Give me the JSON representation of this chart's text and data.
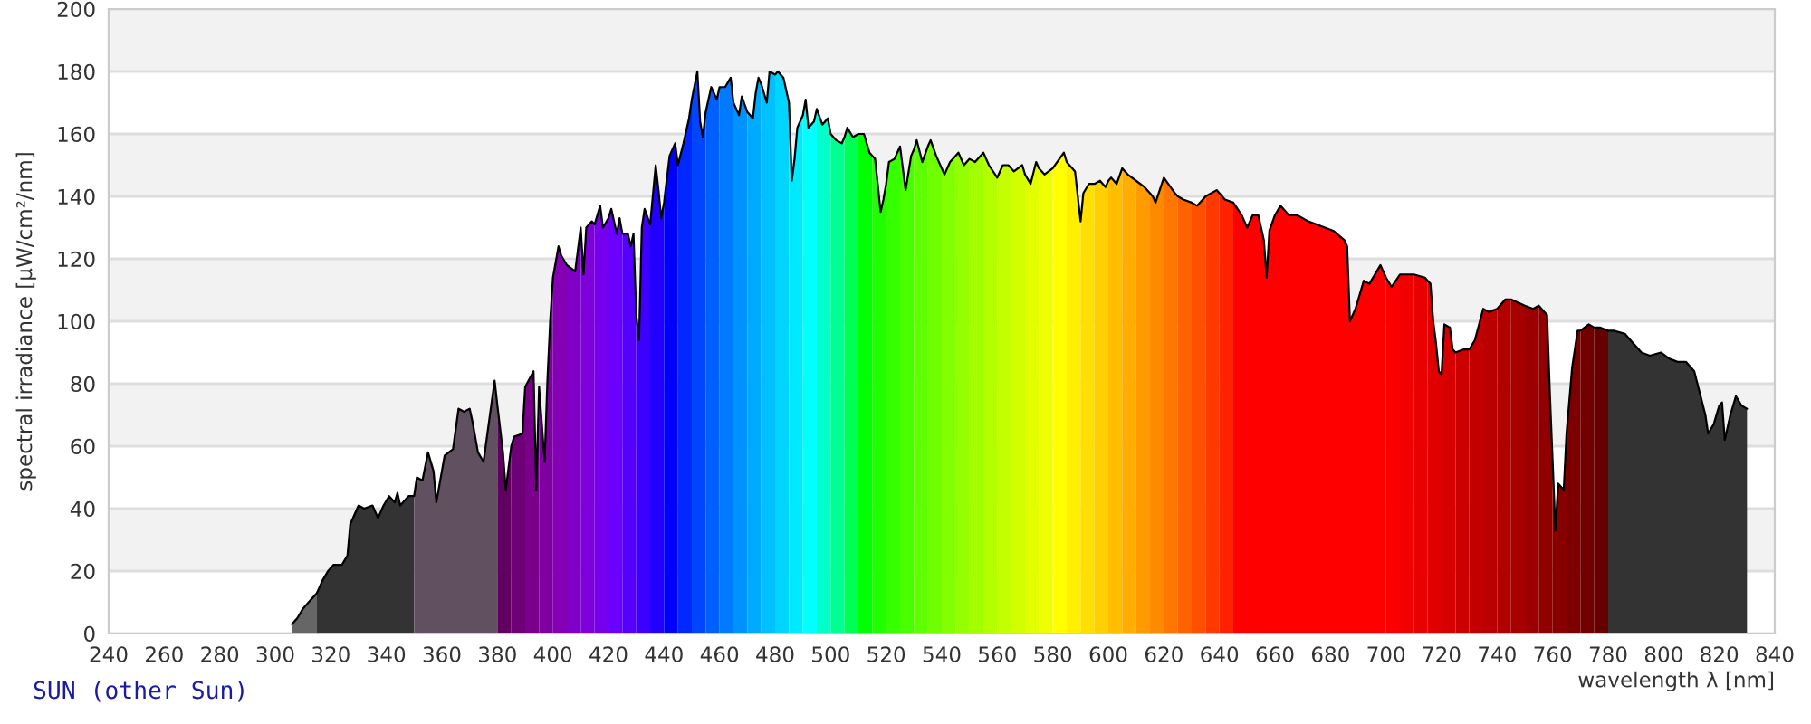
{
  "chart_data": {
    "type": "area",
    "xlabel": "wavelength λ [nm]",
    "ylabel": "spectral irradiance [µW/cm²/nm]",
    "annotations": [
      "SUN (other Sun)"
    ],
    "xlim": [
      240,
      840
    ],
    "xticks": [
      240,
      260,
      280,
      300,
      320,
      340,
      360,
      380,
      400,
      420,
      440,
      460,
      480,
      500,
      520,
      540,
      560,
      580,
      600,
      620,
      640,
      660,
      680,
      700,
      720,
      740,
      760,
      780,
      800,
      820,
      840
    ],
    "ylim": [
      0,
      200
    ],
    "yticks": [
      0,
      20,
      40,
      60,
      80,
      100,
      120,
      140,
      160,
      180,
      200
    ],
    "grid": "y",
    "series": [
      {
        "color": "#666666",
        "x": [
          306,
          308,
          310,
          312,
          315
        ],
        "values": [
          3,
          5,
          8,
          10,
          13
        ]
      },
      {
        "color": "#333333",
        "x": [
          315,
          317,
          319,
          321,
          324,
          326,
          327,
          330,
          332,
          335,
          337,
          339,
          341,
          343,
          344,
          345,
          348,
          350
        ],
        "values": [
          13,
          17,
          20,
          22,
          22,
          25,
          35,
          41,
          40,
          41,
          37,
          41,
          44,
          42,
          45,
          41,
          44,
          44
        ]
      },
      {
        "color": "#605060",
        "x": [
          350,
          351,
          353,
          355,
          357,
          358,
          361,
          364,
          366,
          368,
          370,
          371,
          373,
          375,
          377,
          379,
          380
        ],
        "values": [
          44,
          50,
          49,
          58,
          52,
          42,
          57,
          59,
          72,
          71,
          72,
          68,
          58,
          55,
          68,
          81,
          73
        ]
      },
      {
        "color": "#610061",
        "x": [
          380,
          382,
          383,
          385
        ],
        "values": [
          73,
          58,
          46,
          60
        ]
      },
      {
        "color": "#6e0078",
        "x": [
          385,
          386,
          389,
          390
        ],
        "values": [
          60,
          63,
          64,
          79
        ]
      },
      {
        "color": "#7a008c",
        "x": [
          390,
          393,
          394,
          395
        ],
        "values": [
          79,
          84,
          46,
          79
        ]
      },
      {
        "color": "#7f00a0",
        "x": [
          395,
          397,
          398,
          399,
          400
        ],
        "values": [
          79,
          55,
          81,
          100,
          114
        ]
      },
      {
        "color": "#8300b5",
        "x": [
          400,
          402,
          403,
          405
        ],
        "values": [
          114,
          124,
          121,
          118
        ]
      },
      {
        "color": "#8100c8",
        "x": [
          405,
          408,
          410
        ],
        "values": [
          118,
          116,
          130
        ]
      },
      {
        "color": "#7e00db",
        "x": [
          410,
          411,
          412,
          414,
          415
        ],
        "values": [
          130,
          115,
          130,
          132,
          131
        ]
      },
      {
        "color": "#7600ed",
        "x": [
          415,
          417,
          418,
          420
        ],
        "values": [
          131,
          137,
          130,
          133
        ]
      },
      {
        "color": "#6a00ff",
        "x": [
          420,
          421,
          423,
          424,
          425
        ],
        "values": [
          133,
          136,
          128,
          133,
          128
        ]
      },
      {
        "color": "#5500ff",
        "x": [
          425,
          427,
          428,
          429,
          430
        ],
        "values": [
          128,
          128,
          124,
          128,
          102
        ]
      },
      {
        "color": "#3d00ff",
        "x": [
          430,
          431,
          432,
          433,
          435
        ],
        "values": [
          102,
          94,
          130,
          136,
          131
        ]
      },
      {
        "color": "#2200ff",
        "x": [
          435,
          437,
          438,
          439,
          440
        ],
        "values": [
          131,
          150,
          142,
          133,
          138
        ]
      },
      {
        "color": "#0000ff",
        "x": [
          440,
          442,
          444,
          445
        ],
        "values": [
          138,
          153,
          157,
          150
        ]
      },
      {
        "color": "#0028ff",
        "x": [
          445,
          447,
          449,
          450
        ],
        "values": [
          150,
          157,
          165,
          171
        ]
      },
      {
        "color": "#0046ff",
        "x": [
          450,
          452,
          453,
          454,
          455
        ],
        "values": [
          171,
          180,
          164,
          159,
          167
        ]
      },
      {
        "color": "#0060ff",
        "x": [
          455,
          457,
          459,
          460
        ],
        "values": [
          167,
          175,
          171,
          175
        ]
      },
      {
        "color": "#007aff",
        "x": [
          460,
          462,
          464,
          465
        ],
        "values": [
          175,
          175,
          178,
          170
        ]
      },
      {
        "color": "#0092ff",
        "x": [
          465,
          467,
          468,
          470
        ],
        "values": [
          170,
          166,
          172,
          167
        ]
      },
      {
        "color": "#00aaff",
        "x": [
          470,
          472,
          473,
          474,
          475
        ],
        "values": [
          167,
          165,
          173,
          178,
          176
        ]
      },
      {
        "color": "#00c0ff",
        "x": [
          475,
          477,
          478,
          480
        ],
        "values": [
          176,
          170,
          180,
          179
        ]
      },
      {
        "color": "#00d5ff",
        "x": [
          480,
          481,
          483,
          485
        ],
        "values": [
          179,
          180,
          178,
          170
        ]
      },
      {
        "color": "#00eaff",
        "x": [
          485,
          486,
          487,
          488,
          490
        ],
        "values": [
          170,
          145,
          152,
          162,
          166
        ]
      },
      {
        "color": "#00ffff",
        "x": [
          490,
          491,
          492,
          494,
          495
        ],
        "values": [
          166,
          171,
          162,
          164,
          168
        ]
      },
      {
        "color": "#00ffca",
        "x": [
          495,
          497,
          499,
          500
        ],
        "values": [
          168,
          163,
          165,
          160
        ]
      },
      {
        "color": "#00ff92",
        "x": [
          500,
          502,
          504,
          505
        ],
        "values": [
          160,
          158,
          157,
          159
        ]
      },
      {
        "color": "#00ff54",
        "x": [
          505,
          506,
          508,
          510
        ],
        "values": [
          159,
          162,
          159,
          160
        ]
      },
      {
        "color": "#00ff00",
        "x": [
          510,
          512,
          514,
          515
        ],
        "values": [
          160,
          160,
          154,
          153
        ]
      },
      {
        "color": "#20ff00",
        "x": [
          515,
          516,
          518,
          519,
          520
        ],
        "values": [
          153,
          152,
          135,
          139,
          144
        ]
      },
      {
        "color": "#36ff00",
        "x": [
          520,
          521,
          523,
          525
        ],
        "values": [
          144,
          151,
          152,
          156
        ]
      },
      {
        "color": "#4aff00",
        "x": [
          525,
          527,
          529,
          530
        ],
        "values": [
          156,
          142,
          153,
          155
        ]
      },
      {
        "color": "#5eff00",
        "x": [
          530,
          531,
          533,
          535
        ],
        "values": [
          155,
          158,
          151,
          156
        ]
      },
      {
        "color": "#70ff00",
        "x": [
          535,
          536,
          538,
          540
        ],
        "values": [
          156,
          158,
          153,
          149
        ]
      },
      {
        "color": "#82ff00",
        "x": [
          540,
          541,
          543,
          545
        ],
        "values": [
          149,
          147,
          151,
          153
        ]
      },
      {
        "color": "#93ff00",
        "x": [
          545,
          546,
          548,
          550
        ],
        "values": [
          153,
          154,
          150,
          152
        ]
      },
      {
        "color": "#a3ff00",
        "x": [
          550,
          552,
          555
        ],
        "values": [
          152,
          151,
          154
        ]
      },
      {
        "color": "#b3ff00",
        "x": [
          555,
          557,
          560
        ],
        "values": [
          154,
          150,
          146
        ]
      },
      {
        "color": "#c3ff00",
        "x": [
          560,
          562,
          564,
          565
        ],
        "values": [
          146,
          150,
          150,
          149
        ]
      },
      {
        "color": "#d2ff00",
        "x": [
          565,
          566,
          569,
          570
        ],
        "values": [
          149,
          148,
          150,
          147
        ]
      },
      {
        "color": "#e1ff00",
        "x": [
          570,
          572,
          574,
          575
        ],
        "values": [
          147,
          144,
          151,
          149
        ]
      },
      {
        "color": "#f0ff00",
        "x": [
          575,
          577,
          580
        ],
        "values": [
          149,
          147,
          149
        ]
      },
      {
        "color": "#ffff00",
        "x": [
          580,
          584,
          585
        ],
        "values": [
          149,
          154,
          151
        ]
      },
      {
        "color": "#ffef00",
        "x": [
          585,
          586,
          588,
          590
        ],
        "values": [
          151,
          150,
          148,
          132
        ]
      },
      {
        "color": "#ffdf00",
        "x": [
          590,
          591,
          593,
          595
        ],
        "values": [
          132,
          141,
          144,
          144
        ]
      },
      {
        "color": "#ffcf00",
        "x": [
          595,
          597,
          599,
          600
        ],
        "values": [
          144,
          145,
          143,
          145
        ]
      },
      {
        "color": "#ffbe00",
        "x": [
          600,
          601,
          603,
          605
        ],
        "values": [
          145,
          146,
          144,
          149
        ]
      },
      {
        "color": "#ffad00",
        "x": [
          605,
          607,
          610
        ],
        "values": [
          149,
          147,
          145
        ]
      },
      {
        "color": "#ff9b00",
        "x": [
          610,
          613,
          615
        ],
        "values": [
          145,
          143,
          141
        ]
      },
      {
        "color": "#ff8900",
        "x": [
          615,
          616,
          617,
          620
        ],
        "values": [
          141,
          140,
          138,
          146
        ]
      },
      {
        "color": "#ff7700",
        "x": [
          620,
          624,
          625
        ],
        "values": [
          146,
          141,
          140
        ]
      },
      {
        "color": "#ff6300",
        "x": [
          625,
          627,
          630
        ],
        "values": [
          140,
          139,
          138
        ]
      },
      {
        "color": "#ff4f00",
        "x": [
          630,
          632,
          634,
          635
        ],
        "values": [
          138,
          137,
          139,
          140
        ]
      },
      {
        "color": "#ff3900",
        "x": [
          635,
          639,
          640
        ],
        "values": [
          140,
          142,
          141
        ]
      },
      {
        "color": "#ff2100",
        "x": [
          640,
          642,
          645
        ],
        "values": [
          141,
          139,
          138
        ]
      },
      {
        "color": "#ff0000",
        "x": [
          645,
          648,
          650,
          652,
          654,
          656,
          657,
          658,
          660,
          662,
          665,
          668,
          672,
          675,
          678,
          681,
          685,
          686,
          687,
          689,
          692,
          694,
          698,
          700
        ],
        "values": [
          138,
          134,
          130,
          134,
          134,
          126,
          114,
          129,
          134,
          137,
          134,
          134,
          132,
          131,
          130,
          129,
          126,
          124,
          100,
          104,
          113,
          112,
          118,
          114
        ]
      },
      {
        "color": "#fa0000",
        "x": [
          700,
          702,
          705
        ],
        "values": [
          114,
          111,
          115
        ]
      },
      {
        "color": "#f20000",
        "x": [
          705,
          709,
          710
        ],
        "values": [
          115,
          115,
          115
        ]
      },
      {
        "color": "#e90000",
        "x": [
          710,
          714,
          715
        ],
        "values": [
          115,
          114,
          113
        ]
      },
      {
        "color": "#e00000",
        "x": [
          715,
          716,
          717,
          718,
          719,
          720
        ],
        "values": [
          113,
          112,
          100,
          93,
          84,
          83
        ]
      },
      {
        "color": "#d60000",
        "x": [
          720,
          721,
          723,
          724,
          725
        ],
        "values": [
          83,
          99,
          98,
          91,
          90
        ]
      },
      {
        "color": "#cd0000",
        "x": [
          725,
          728,
          730
        ],
        "values": [
          90,
          91,
          91
        ]
      },
      {
        "color": "#c30000",
        "x": [
          730,
          732,
          735
        ],
        "values": [
          91,
          94,
          104
        ]
      },
      {
        "color": "#ba0000",
        "x": [
          735,
          737,
          740
        ],
        "values": [
          104,
          103,
          104
        ]
      },
      {
        "color": "#b00000",
        "x": [
          740,
          743,
          745
        ],
        "values": [
          104,
          107,
          107
        ]
      },
      {
        "color": "#a60000",
        "x": [
          745,
          750
        ],
        "values": [
          107,
          105
        ]
      },
      {
        "color": "#9c0000",
        "x": [
          750,
          753,
          755
        ],
        "values": [
          105,
          104,
          105
        ]
      },
      {
        "color": "#910000",
        "x": [
          755,
          757,
          758,
          759,
          760
        ],
        "values": [
          105,
          103,
          102,
          77,
          55
        ]
      },
      {
        "color": "#870000",
        "x": [
          760,
          761,
          762,
          764,
          765
        ],
        "values": [
          55,
          33,
          48,
          46,
          64
        ]
      },
      {
        "color": "#7d0000",
        "x": [
          765,
          767,
          769,
          770
        ],
        "values": [
          64,
          85,
          97,
          97
        ]
      },
      {
        "color": "#720000",
        "x": [
          770,
          773,
          775
        ],
        "values": [
          97,
          99,
          98
        ]
      },
      {
        "color": "#660000",
        "x": [
          775,
          777,
          780
        ],
        "values": [
          98,
          98,
          97
        ]
      },
      {
        "color": "#333333",
        "x": [
          780,
          782,
          786,
          789,
          792,
          795,
          799,
          802,
          805,
          808,
          811,
          813,
          815,
          816,
          818,
          820,
          821,
          822,
          824,
          825,
          826,
          828,
          830
        ],
        "values": [
          97,
          97,
          96,
          93,
          90,
          89,
          90,
          88,
          87,
          87,
          84,
          77,
          70,
          64,
          67,
          73,
          74,
          62,
          70,
          73,
          76,
          73,
          72
        ]
      },
      {
        "type": "line",
        "color": "#000000",
        "x": [
          306,
          308,
          310,
          312,
          315,
          317,
          319,
          321,
          324,
          326,
          327,
          330,
          332,
          335,
          337,
          339,
          341,
          343,
          344,
          345,
          348,
          350,
          351,
          353,
          355,
          357,
          358,
          361,
          364,
          366,
          368,
          370,
          371,
          373,
          375,
          377,
          379,
          380,
          382,
          383,
          385,
          386,
          389,
          390,
          393,
          394,
          395,
          397,
          398,
          399,
          400,
          402,
          403,
          405,
          408,
          410,
          411,
          412,
          414,
          415,
          417,
          418,
          420,
          421,
          423,
          424,
          425,
          427,
          428,
          429,
          430,
          431,
          432,
          433,
          435,
          437,
          438,
          439,
          440,
          442,
          444,
          445,
          447,
          449,
          450,
          452,
          453,
          454,
          455,
          457,
          459,
          460,
          462,
          464,
          465,
          467,
          468,
          470,
          472,
          473,
          474,
          475,
          477,
          478,
          480,
          481,
          483,
          485,
          486,
          487,
          488,
          490,
          491,
          492,
          494,
          495,
          497,
          499,
          500,
          502,
          504,
          505,
          506,
          508,
          510,
          512,
          514,
          515,
          516,
          518,
          519,
          520,
          521,
          523,
          525,
          527,
          529,
          530,
          531,
          533,
          535,
          536,
          538,
          540,
          541,
          543,
          545,
          546,
          548,
          550,
          552,
          555,
          557,
          560,
          562,
          564,
          565,
          566,
          569,
          570,
          572,
          574,
          575,
          577,
          580,
          584,
          585,
          586,
          588,
          590,
          591,
          593,
          595,
          597,
          599,
          600,
          601,
          603,
          605,
          607,
          610,
          613,
          615,
          616,
          617,
          620,
          624,
          625,
          627,
          630,
          632,
          634,
          635,
          639,
          640,
          642,
          645,
          648,
          650,
          652,
          654,
          656,
          657,
          658,
          660,
          662,
          665,
          668,
          672,
          675,
          678,
          681,
          685,
          686,
          687,
          689,
          692,
          694,
          698,
          700,
          702,
          705,
          709,
          710,
          714,
          715,
          716,
          717,
          718,
          719,
          720,
          721,
          723,
          724,
          725,
          728,
          730,
          732,
          735,
          737,
          740,
          743,
          745,
          750,
          753,
          755,
          757,
          758,
          759,
          760,
          761,
          762,
          764,
          765,
          767,
          769,
          770,
          773,
          775,
          777,
          780,
          782,
          786,
          789,
          792,
          795,
          799,
          802,
          805,
          808,
          811,
          813,
          815,
          816,
          818,
          820,
          821,
          822,
          824,
          825,
          826,
          828,
          830
        ],
        "values": [
          3,
          5,
          8,
          10,
          13,
          17,
          20,
          22,
          22,
          25,
          35,
          41,
          40,
          41,
          37,
          41,
          44,
          42,
          45,
          41,
          44,
          44,
          50,
          49,
          58,
          52,
          42,
          57,
          59,
          72,
          71,
          72,
          68,
          58,
          55,
          68,
          81,
          73,
          58,
          46,
          60,
          63,
          64,
          79,
          84,
          46,
          79,
          55,
          81,
          100,
          114,
          124,
          121,
          118,
          116,
          130,
          115,
          130,
          132,
          131,
          137,
          130,
          133,
          136,
          128,
          133,
          128,
          128,
          124,
          128,
          102,
          94,
          130,
          136,
          131,
          150,
          142,
          133,
          138,
          153,
          157,
          150,
          157,
          165,
          171,
          180,
          164,
          159,
          167,
          175,
          171,
          175,
          175,
          178,
          170,
          166,
          172,
          167,
          165,
          173,
          178,
          176,
          170,
          180,
          179,
          180,
          178,
          170,
          145,
          152,
          162,
          166,
          171,
          162,
          164,
          168,
          163,
          165,
          160,
          158,
          157,
          159,
          162,
          159,
          160,
          160,
          154,
          153,
          152,
          135,
          139,
          144,
          151,
          152,
          156,
          142,
          153,
          155,
          158,
          151,
          156,
          158,
          153,
          149,
          147,
          151,
          153,
          154,
          150,
          152,
          151,
          154,
          150,
          146,
          150,
          150,
          149,
          148,
          150,
          147,
          144,
          151,
          149,
          147,
          149,
          154,
          151,
          150,
          148,
          132,
          141,
          144,
          144,
          145,
          143,
          145,
          146,
          144,
          149,
          147,
          145,
          143,
          141,
          140,
          138,
          146,
          141,
          140,
          139,
          138,
          137,
          139,
          140,
          142,
          141,
          139,
          138,
          134,
          130,
          134,
          134,
          126,
          114,
          129,
          134,
          137,
          134,
          134,
          132,
          131,
          130,
          129,
          126,
          124,
          100,
          104,
          113,
          112,
          118,
          114,
          111,
          115,
          115,
          115,
          114,
          113,
          112,
          100,
          93,
          84,
          83,
          99,
          98,
          91,
          90,
          91,
          91,
          94,
          104,
          103,
          104,
          107,
          107,
          105,
          104,
          105,
          103,
          102,
          77,
          55,
          33,
          48,
          46,
          64,
          85,
          97,
          97,
          99,
          98,
          98,
          97,
          97,
          96,
          93,
          90,
          89,
          90,
          88,
          87,
          87,
          84,
          77,
          70,
          64,
          67,
          73,
          74,
          62,
          70,
          73,
          76,
          73,
          72
        ]
      }
    ]
  }
}
